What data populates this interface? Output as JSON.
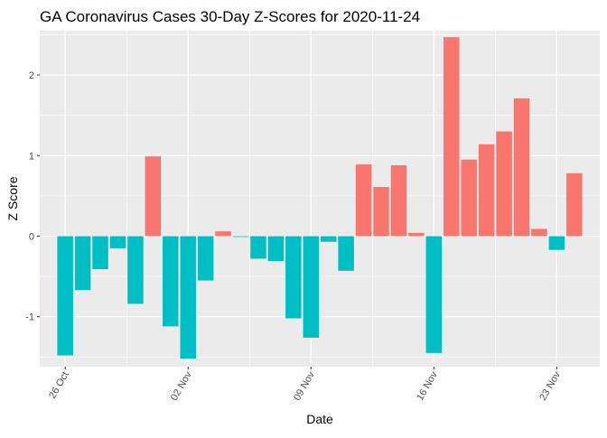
{
  "chart_data": {
    "type": "bar",
    "title": "GA Coronavirus Cases 30-Day Z-Scores for 2020-11-24",
    "xlabel": "Date",
    "ylabel": "Z Score",
    "x_start": "2020-10-26",
    "x_end": "2020-11-24",
    "x_tick_dates": [
      "2020-10-26",
      "2020-11-02",
      "2020-11-09",
      "2020-11-16",
      "2020-11-23"
    ],
    "x_tick_labels": [
      "26 Oct",
      "02 Nov",
      "09 Nov",
      "16 Nov",
      "23 Nov"
    ],
    "y_ticks": [
      -1,
      0,
      1,
      2
    ],
    "ylim": [
      -1.62,
      2.55
    ],
    "grid": true,
    "legend": "none",
    "colors": {
      "positive": "#F8766D",
      "negative": "#00BFC4",
      "panel": "#EBEBEB",
      "grid": "#FFFFFF"
    },
    "data": [
      {
        "date": "2020-10-26",
        "value": -1.48
      },
      {
        "date": "2020-10-27",
        "value": -0.67
      },
      {
        "date": "2020-10-28",
        "value": -0.41
      },
      {
        "date": "2020-10-29",
        "value": -0.15
      },
      {
        "date": "2020-10-30",
        "value": -0.84
      },
      {
        "date": "2020-10-31",
        "value": 0.99
      },
      {
        "date": "2020-11-01",
        "value": -1.12
      },
      {
        "date": "2020-11-02",
        "value": -1.52
      },
      {
        "date": "2020-11-03",
        "value": -0.55
      },
      {
        "date": "2020-11-04",
        "value": 0.06
      },
      {
        "date": "2020-11-05",
        "value": -0.01
      },
      {
        "date": "2020-11-06",
        "value": -0.28
      },
      {
        "date": "2020-11-07",
        "value": -0.31
      },
      {
        "date": "2020-11-08",
        "value": -1.02
      },
      {
        "date": "2020-11-09",
        "value": -1.26
      },
      {
        "date": "2020-11-10",
        "value": -0.07
      },
      {
        "date": "2020-11-11",
        "value": -0.43
      },
      {
        "date": "2020-11-12",
        "value": 0.89
      },
      {
        "date": "2020-11-13",
        "value": 0.61
      },
      {
        "date": "2020-11-14",
        "value": 0.88
      },
      {
        "date": "2020-11-15",
        "value": 0.04
      },
      {
        "date": "2020-11-16",
        "value": -1.45
      },
      {
        "date": "2020-11-17",
        "value": 2.47
      },
      {
        "date": "2020-11-18",
        "value": 0.95
      },
      {
        "date": "2020-11-19",
        "value": 1.14
      },
      {
        "date": "2020-11-20",
        "value": 1.3
      },
      {
        "date": "2020-11-21",
        "value": 1.71
      },
      {
        "date": "2020-11-22",
        "value": 0.09
      },
      {
        "date": "2020-11-23",
        "value": -0.17
      },
      {
        "date": "2020-11-24",
        "value": 0.78
      }
    ]
  }
}
